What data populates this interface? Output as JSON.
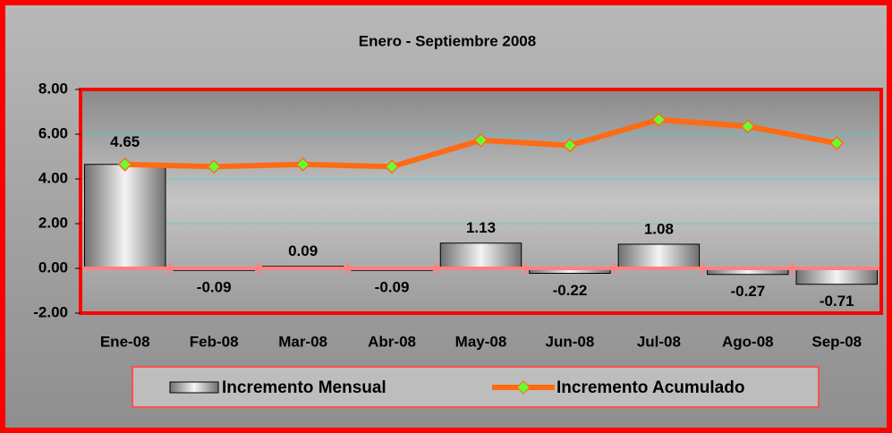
{
  "chart_data": {
    "type": "bar",
    "title": "Enero - Septiembre 2008",
    "categories": [
      "Ene-08",
      "Feb-08",
      "Mar-08",
      "Abr-08",
      "May-08",
      "Jun-08",
      "Jul-08",
      "Ago-08",
      "Sep-08"
    ],
    "series": [
      {
        "name": "Incremento Mensual",
        "type": "bar",
        "color": "#c8c8c8",
        "values": [
          4.65,
          -0.09,
          0.09,
          -0.09,
          1.13,
          -0.22,
          1.08,
          -0.27,
          -0.71
        ]
      },
      {
        "name": "Incremento Acumulado",
        "type": "line",
        "color": "#ff6a13",
        "marker_color": "#66ff33",
        "values": [
          4.65,
          4.55,
          4.65,
          4.55,
          5.73,
          5.5,
          6.65,
          6.35,
          5.6
        ]
      }
    ],
    "ylim": [
      -2,
      8
    ],
    "yticks": [
      {
        "value": -2,
        "label": "-2.00"
      },
      {
        "value": 0,
        "label": "0.00"
      },
      {
        "value": 2,
        "label": "2.00"
      },
      {
        "value": 4,
        "label": "4.00"
      },
      {
        "value": 6,
        "label": "6.00"
      },
      {
        "value": 8,
        "label": "8.00"
      }
    ],
    "grid": true
  }
}
